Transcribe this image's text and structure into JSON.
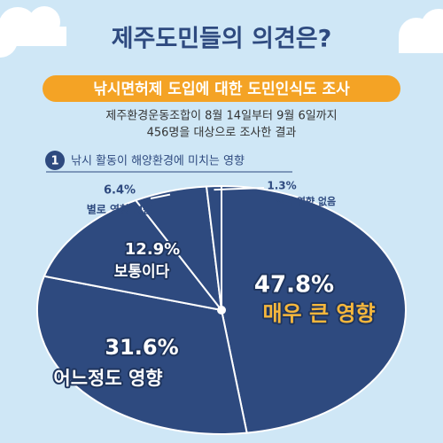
{
  "header": {
    "title": "제주도민들의 의견은?",
    "banner": "낚시면허제 도입에 대한 도민인식도 조사",
    "subtitle": [
      "제주환경운동조합이 8월 14일부터 9월 6일까지",
      "456명을 대상으로 조사한 결과"
    ],
    "section_number": "1",
    "section_title": "낚시 활동이 해양환경에 미치는 영향"
  },
  "chart_data": {
    "type": "pie",
    "color": "#2e4a7f",
    "categories": [
      "매우 큰 영향",
      "어느정도 영향",
      "보통이다",
      "별로 영향 없음",
      "전혀 영향 없음"
    ],
    "values": [
      47.8,
      31.6,
      12.9,
      6.4,
      1.3
    ],
    "value_labels": [
      "47.8%",
      "31.6%",
      "12.9%",
      "6.4%",
      "1.3%"
    ]
  }
}
